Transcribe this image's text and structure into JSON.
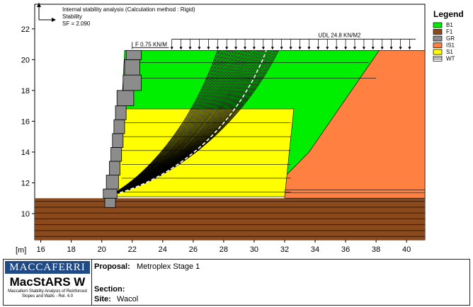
{
  "chart_data": {
    "type": "other",
    "axis_unit": "[m]",
    "x_ticks": [
      16,
      18,
      20,
      22,
      24,
      26,
      28,
      30,
      32,
      34,
      36,
      38,
      40
    ],
    "y_ticks": [
      10,
      12,
      14,
      16,
      18,
      20,
      22
    ],
    "xlim": [
      15.6,
      41.2
    ],
    "ylim": [
      8.3,
      23.6
    ],
    "annotation_lines": [
      "Internal stability analysis (Calculation method : Rigid)",
      "Stability",
      "SF = 2.090"
    ],
    "point_load_label": "F 0.75 KN/M",
    "udl_label": "UDL 24.8 KN/M2",
    "legend_title": "Legend",
    "legend_items": [
      {
        "label": "B1",
        "color": "#00ee00"
      },
      {
        "label": "F1",
        "color": "#8a4a1c"
      },
      {
        "label": "GR",
        "color": "#8c8c8c"
      },
      {
        "label": "IS1",
        "color": "#ff8040"
      },
      {
        "label": "S1",
        "color": "#ffff00"
      },
      {
        "label": "WT",
        "color": "pattern"
      }
    ]
  },
  "titleblock": {
    "brand": "MACCAFERRI",
    "product": "MacStARS W",
    "product_sub": "Maccaferri Stability Analysis of Reinforced Slopes and Walls - Rel. 4.0",
    "proposal_label": "Proposal:",
    "proposal_value": "Metroplex Stage 1",
    "section_label": "Section:",
    "section_value": "",
    "site_label": "Site:",
    "site_value": "Wacol"
  }
}
